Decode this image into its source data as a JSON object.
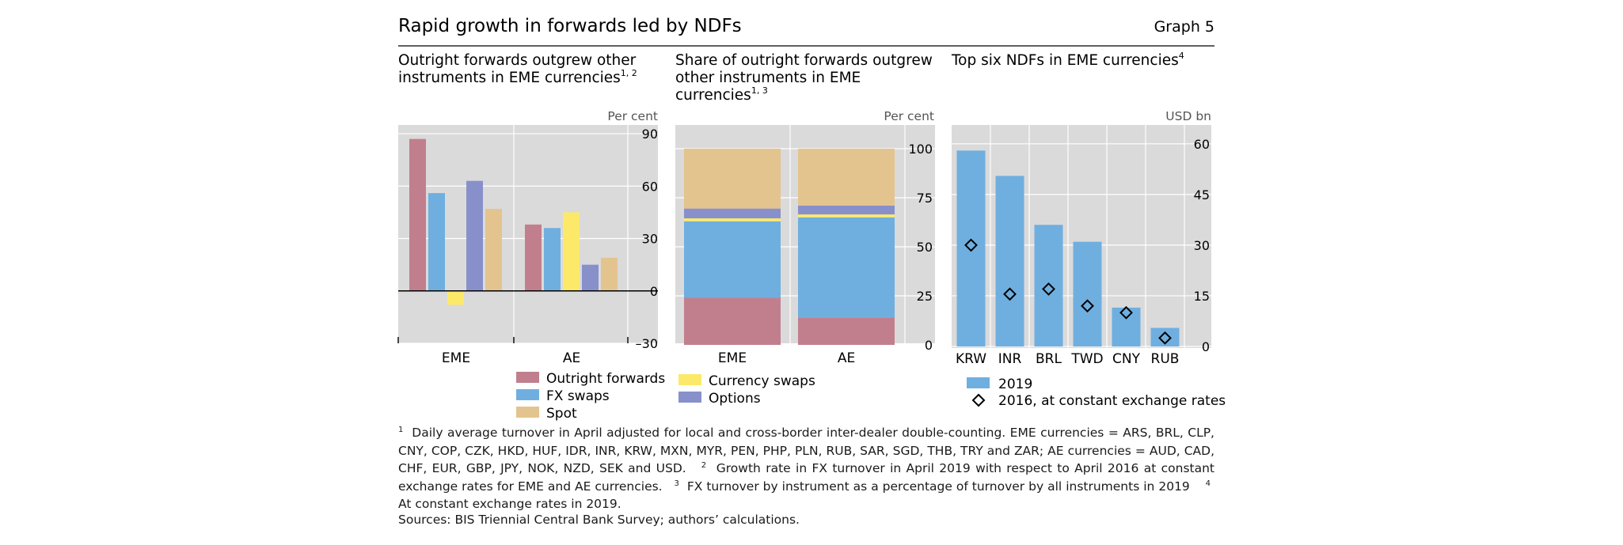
{
  "header": {
    "title": "Rapid growth in forwards led by NDFs",
    "graph_label": "Graph 5"
  },
  "colors": {
    "outright": "#C17F8E",
    "fx_swaps": "#6FAFE0",
    "spot": "#E4C48E",
    "currency_swaps": "#FCE96A",
    "options": "#8890CB",
    "panel_bg": "#DADADA",
    "bar_2019": "#6FAFE0"
  },
  "chart_data": [
    {
      "type": "bar",
      "title": "Outright forwards outgrew other instruments in EME currencies",
      "title_sup": "1, 2",
      "unit": "Per cent",
      "categories": [
        "EME",
        "AE"
      ],
      "series": [
        {
          "name": "Outright forwards",
          "values": [
            87,
            38
          ]
        },
        {
          "name": "FX swaps",
          "values": [
            56,
            36
          ]
        },
        {
          "name": "Currency swaps",
          "values": [
            -8,
            45
          ]
        },
        {
          "name": "Options",
          "values": [
            63,
            15
          ]
        },
        {
          "name": "Spot",
          "values": [
            47,
            19
          ]
        }
      ],
      "ylim": [
        -30,
        95
      ],
      "yticks": [
        90,
        60,
        30,
        0,
        -30
      ],
      "ytick_labels": [
        "90",
        "60",
        "30",
        "0",
        "–30"
      ],
      "grid": true
    },
    {
      "type": "bar",
      "stacked": true,
      "title": "Share of outright forwards outgrew other instruments in EME currencies",
      "title_sup": "1, 3",
      "unit": "Per cent",
      "categories": [
        "EME",
        "AE"
      ],
      "series": [
        {
          "name": "Outright forwards",
          "values": [
            24,
            14
          ]
        },
        {
          "name": "FX swaps",
          "values": [
            39,
            51
          ]
        },
        {
          "name": "Currency swaps",
          "values": [
            1.5,
            1.5
          ]
        },
        {
          "name": "Options",
          "values": [
            5,
            4.5
          ]
        },
        {
          "name": "Spot",
          "values": [
            30.5,
            29
          ]
        }
      ],
      "ylim": [
        0,
        105
      ],
      "yticks": [
        100,
        75,
        50,
        25,
        0
      ],
      "grid": true
    },
    {
      "type": "bar",
      "title": "Top six NDFs in EME currencies",
      "title_sup": "4",
      "unit": "USD bn",
      "categories": [
        "KRW",
        "INR",
        "BRL",
        "TWD",
        "CNY",
        "RUB"
      ],
      "series": [
        {
          "name": "2019",
          "values": [
            58,
            50.5,
            36,
            31,
            11.5,
            5.5
          ]
        },
        {
          "name": "2016, at constant exchange rates",
          "values": [
            30,
            15.5,
            17,
            12,
            10,
            2.5
          ]
        }
      ],
      "ylim": [
        0,
        65
      ],
      "yticks": [
        60,
        45,
        30,
        15,
        0
      ],
      "grid": true
    }
  ],
  "legend_left": {
    "outright": "Outright forwards",
    "fx_swaps": "FX swaps",
    "spot": "Spot",
    "currency_swaps": "Currency swaps",
    "options": "Options"
  },
  "legend_right": {
    "bars": "2019",
    "diamonds": "2016, at constant exchange rates"
  },
  "footnotes": {
    "n1": "1",
    "t1": "Daily average turnover in April adjusted for local and cross-border inter-dealer double-counting. EME currencies = ARS, BRL, CLP, CNY, COP, CZK, HKD, HUF, IDR, INR, KRW, MXN, MYR, PEN, PHP, PLN, RUB, SAR, SGD, THB, TRY and ZAR; AE currencies = AUD, CAD, CHF, EUR, GBP, JPY, NOK, NZD, SEK and USD.",
    "n2": "2",
    "t2": "Growth rate in FX turnover in April 2019 with respect to April 2016 at constant exchange rates for EME and AE currencies.",
    "n3": "3",
    "t3": "FX turnover by instrument as a percentage of turnover by all instruments in 2019",
    "n4": "4",
    "t4": "At constant exchange rates in 2019."
  },
  "sources": "Sources: BIS Triennial Central Bank Survey; authors’ calculations."
}
